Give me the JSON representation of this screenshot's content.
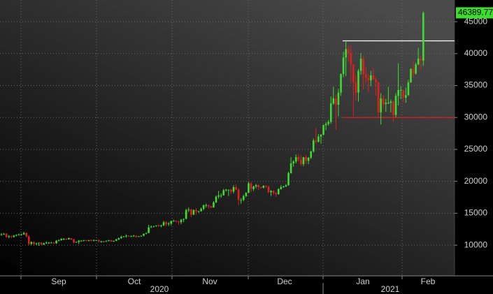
{
  "chart_data": {
    "type": "candlestick",
    "up_color": "#3ddc2f",
    "down_color": "#e01e1e",
    "ylim": [
      5200,
      48400
    ],
    "yticks": [
      10000,
      15000,
      20000,
      25000,
      30000,
      35000,
      40000,
      45000
    ],
    "grid": true,
    "months": [
      "Sep",
      "Oct",
      "Nov",
      "Dec",
      "Jan",
      "Feb"
    ],
    "years": [
      "2020",
      "2021"
    ],
    "levels": [
      {
        "value": 42000,
        "color": "#ffffff"
      },
      {
        "value": 30000,
        "color": "#e01e1e"
      }
    ],
    "open": [
      11600,
      11700,
      11800,
      11300,
      11400,
      11300,
      11500,
      11600,
      11700,
      11700,
      11900,
      11400,
      10200,
      10500,
      10200,
      10300,
      10400,
      10100,
      10300,
      10400,
      10400,
      10400,
      10300,
      10700,
      10800,
      11000,
      11000,
      10900,
      11100,
      10900,
      10400,
      10500,
      10700,
      10700,
      10800,
      10700,
      10800,
      10700,
      10800,
      10800,
      10600,
      10600,
      10600,
      10700,
      10800,
      10600,
      10700,
      10900,
      11100,
      11300,
      11400,
      11500,
      11400,
      11400,
      11500,
      11300,
      11400,
      11500,
      11800,
      11900,
      12800,
      12900,
      13000,
      13100,
      13000,
      13100,
      13600,
      13300,
      13400,
      13800,
      13800,
      13700,
      13600,
      14000,
      14100,
      15500,
      15600,
      14800,
      15500,
      15300,
      15300,
      15700,
      16300,
      16300,
      16100,
      15900,
      16700,
      17600,
      17800,
      17800,
      18600,
      18700,
      18700,
      18400,
      19100,
      18700,
      17100,
      17100,
      17700,
      18200,
      19700,
      18800,
      19200,
      19400,
      19100,
      19000,
      19300,
      19200,
      18300,
      18500,
      18200,
      18000,
      18800,
      19100,
      19200,
      19400,
      21300,
      22800,
      23100,
      23800,
      23400,
      22700,
      23800,
      23200,
      23700,
      24700,
      26400,
      26200,
      27000,
      27300,
      28800,
      29000,
      29300,
      32200,
      33000,
      32000,
      33900,
      36800,
      39400,
      40700,
      40100,
      38300,
      35500,
      33900,
      37300,
      39200,
      36800,
      36200,
      35800,
      36600,
      36000,
      35500,
      30800,
      33000,
      32100,
      32300,
      32300,
      32500,
      30400,
      33400,
      34300,
      34300,
      33100,
      33500,
      35500,
      37600,
      36900,
      38300,
      39200,
      38900
    ],
    "high": [
      11900,
      11900,
      11900,
      11600,
      11500,
      11600,
      11700,
      11800,
      11800,
      12100,
      12000,
      11500,
      10600,
      10600,
      10400,
      10400,
      10500,
      10400,
      10600,
      10500,
      10500,
      10500,
      10800,
      10900,
      11100,
      11100,
      11100,
      11200,
      11100,
      11000,
      10600,
      10800,
      10800,
      10800,
      10800,
      10800,
      10900,
      10900,
      10800,
      10900,
      10700,
      10600,
      10700,
      10800,
      10800,
      10700,
      11000,
      11200,
      11500,
      11400,
      11700,
      11500,
      11500,
      11600,
      11500,
      11400,
      11500,
      11800,
      12000,
      13200,
      13100,
      13000,
      13100,
      13300,
      13200,
      13800,
      13800,
      13600,
      13800,
      14000,
      13900,
      13800,
      14100,
      14200,
      15700,
      15900,
      15700,
      15600,
      15800,
      15400,
      15900,
      16300,
      16500,
      16300,
      16200,
      16900,
      17800,
      18500,
      18100,
      18800,
      18800,
      18700,
      18800,
      19400,
      19500,
      18900,
      17400,
      17900,
      18300,
      19900,
      19900,
      19300,
      19600,
      19500,
      19200,
      19400,
      19400,
      19300,
      18600,
      18600,
      18300,
      18900,
      19400,
      19300,
      19600,
      21500,
      23800,
      23300,
      24200,
      24200,
      24100,
      23800,
      24100,
      23800,
      24800,
      26700,
      28400,
      27400,
      27400,
      28900,
      29300,
      29600,
      33300,
      34800,
      33600,
      34500,
      36900,
      40300,
      41900,
      41300,
      41300,
      38300,
      36600,
      37600,
      40100,
      39700,
      37900,
      36800,
      37300,
      37800,
      36400,
      35600,
      33800,
      33500,
      32900,
      34800,
      32800,
      32600,
      33800,
      38500,
      34900,
      34300,
      34700,
      35900,
      37700,
      38700,
      38600,
      40900,
      39700,
      46600
    ],
    "low": [
      11500,
      11600,
      11200,
      11100,
      11100,
      11200,
      11400,
      11500,
      11500,
      11600,
      11200,
      10000,
      10000,
      9900,
      10000,
      9900,
      10000,
      10000,
      10200,
      10200,
      10300,
      10200,
      10200,
      10600,
      10700,
      10800,
      10800,
      10900,
      10800,
      10300,
      10400,
      10200,
      10600,
      10600,
      10600,
      10600,
      10600,
      10600,
      10700,
      10400,
      10400,
      10500,
      10500,
      10600,
      10500,
      10500,
      10600,
      10800,
      11000,
      11200,
      11200,
      11300,
      11300,
      11300,
      11200,
      11300,
      11300,
      11400,
      11700,
      11900,
      12700,
      12800,
      12900,
      12900,
      12800,
      13000,
      13000,
      13000,
      13100,
      13700,
      13600,
      13200,
      13300,
      13600,
      14100,
      15200,
      14400,
      14700,
      14800,
      15100,
      15300,
      15500,
      15900,
      15700,
      15800,
      15900,
      16600,
      17300,
      17400,
      17800,
      18400,
      17700,
      18000,
      18100,
      18600,
      16300,
      16500,
      16900,
      17500,
      18200,
      18300,
      18500,
      18900,
      18600,
      18900,
      18900,
      19000,
      18200,
      17700,
      17900,
      17600,
      17900,
      18700,
      19000,
      19100,
      19300,
      21200,
      22300,
      22800,
      23100,
      22400,
      22400,
      22700,
      22700,
      23500,
      24500,
      25900,
      26100,
      25900,
      27200,
      28000,
      28700,
      29000,
      32000,
      28100,
      30200,
      33400,
      36300,
      36500,
      38700,
      35400,
      30200,
      32600,
      32500,
      36700,
      34400,
      35400,
      33900,
      34900,
      35900,
      33400,
      30100,
      28900,
      31400,
      30900,
      32100,
      30800,
      29300,
      30000,
      31900,
      32900,
      32400,
      32300,
      33400,
      35400,
      36200,
      36700,
      38200,
      37400,
      38100
    ],
    "close": [
      11700,
      11800,
      11300,
      11400,
      11300,
      11500,
      11600,
      11700,
      11700,
      11900,
      11400,
      10200,
      10500,
      10200,
      10300,
      10400,
      10100,
      10300,
      10400,
      10400,
      10400,
      10300,
      10700,
      10800,
      11000,
      11000,
      10900,
      11100,
      10900,
      10400,
      10500,
      10700,
      10700,
      10800,
      10700,
      10800,
      10700,
      10800,
      10800,
      10600,
      10600,
      10600,
      10700,
      10800,
      10600,
      10700,
      10900,
      11100,
      11300,
      11400,
      11500,
      11400,
      11400,
      11500,
      11300,
      11400,
      11500,
      11800,
      11900,
      12800,
      12900,
      13000,
      13100,
      13000,
      13100,
      13600,
      13300,
      13400,
      13800,
      13800,
      13700,
      13600,
      14000,
      14100,
      15500,
      15600,
      14800,
      15500,
      15300,
      15300,
      15700,
      16300,
      16300,
      16100,
      15900,
      16700,
      17600,
      17800,
      17800,
      18600,
      18700,
      18700,
      18400,
      19100,
      18700,
      17100,
      17100,
      17700,
      18200,
      19700,
      18800,
      19200,
      19400,
      19100,
      19000,
      19300,
      19200,
      18300,
      18500,
      18200,
      18000,
      18800,
      19100,
      19200,
      19400,
      21300,
      22800,
      23100,
      23800,
      23400,
      22700,
      23800,
      23200,
      23700,
      24700,
      26400,
      26200,
      27000,
      27300,
      28800,
      29000,
      29300,
      32200,
      33000,
      32000,
      33900,
      36800,
      39400,
      40700,
      40100,
      38300,
      35500,
      33900,
      37300,
      39200,
      36800,
      36200,
      35800,
      36600,
      36000,
      35500,
      30800,
      33000,
      32100,
      32300,
      32300,
      32500,
      30400,
      33400,
      34300,
      34300,
      33100,
      33500,
      35500,
      37600,
      36900,
      38300,
      39200,
      38900,
      46389.77
    ]
  }
}
